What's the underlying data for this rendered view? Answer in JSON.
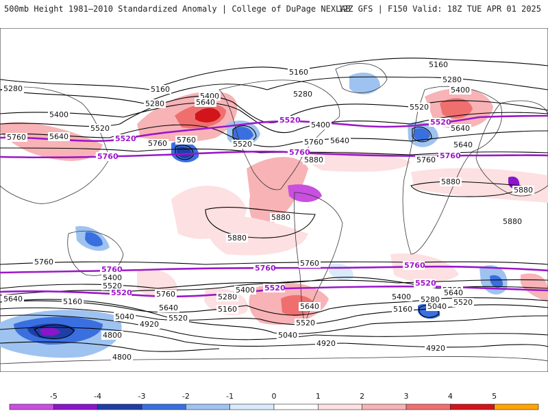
{
  "header": {
    "title": "500mb Height 1981–2010 Standardized Anomaly | College of DuPage NEXLAB",
    "run_info": "12Z GFS | F150 Valid: 18Z TUE APR 01 2025"
  },
  "map": {
    "contour_labels": [
      {
        "text": "5160"
      },
      {
        "text": "5280"
      },
      {
        "text": "5400"
      },
      {
        "text": "5520"
      },
      {
        "text": "5640"
      },
      {
        "text": "5760"
      },
      {
        "text": "5880"
      },
      {
        "text": "5040"
      },
      {
        "text": "4920"
      },
      {
        "text": "4800"
      }
    ],
    "highlight_labels": [
      {
        "text": "5520"
      },
      {
        "text": "5760"
      }
    ]
  },
  "colorbar": {
    "ticks": [
      "-5",
      "-4",
      "-3",
      "-2",
      "-1",
      "0",
      "1",
      "2",
      "3",
      "4",
      "5"
    ],
    "colors": [
      "#c84fe0",
      "#8a16c9",
      "#1e3fa6",
      "#3a6fdf",
      "#9fc3f0",
      "#d9ebfb",
      "#ffffff",
      "#fde0e2",
      "#f7b3b6",
      "#ef6f6f",
      "#d1151b",
      "#ffa400"
    ]
  }
}
